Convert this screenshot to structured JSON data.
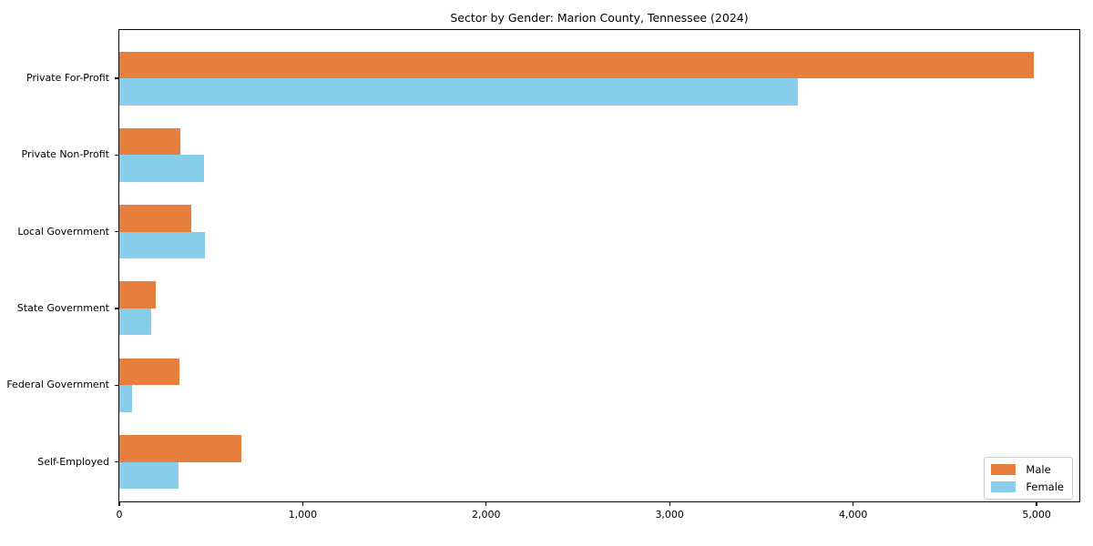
{
  "title": "Sector by Gender: Marion County, Tennessee (2024)",
  "chart_data": {
    "type": "bar",
    "orientation": "horizontal",
    "title": "Sector by Gender: Marion County, Tennessee (2024)",
    "categories": [
      "Private For-Profit",
      "Private Non-Profit",
      "Local Government",
      "State Government",
      "Federal Government",
      "Self-Employed"
    ],
    "series": [
      {
        "name": "Male",
        "color": "#e87e3e",
        "values": [
          4985,
          330,
          390,
          200,
          325,
          665
        ]
      },
      {
        "name": "Female",
        "color": "#87ceeb",
        "values": [
          3700,
          460,
          465,
          175,
          70,
          320
        ]
      }
    ],
    "xlabel": "",
    "ylabel": "",
    "xlim": [
      0,
      5233
    ],
    "xticks": [
      0,
      1000,
      2000,
      3000,
      4000,
      5000
    ],
    "xtick_labels": [
      "0",
      "1,000",
      "2,000",
      "3,000",
      "4,000",
      "5,000"
    ],
    "grid": false,
    "legend_position": "lower right"
  },
  "legend": {
    "items": [
      {
        "label": "Male",
        "color": "#e87e3e"
      },
      {
        "label": "Female",
        "color": "#87ceeb"
      }
    ]
  }
}
